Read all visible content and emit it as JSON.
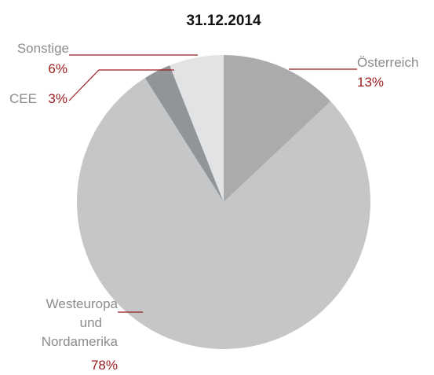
{
  "chart_data": {
    "type": "pie",
    "title": "31.12.2014",
    "categories": [
      "Österreich",
      "Westeuropa und Nordamerika",
      "CEE",
      "Sonstige"
    ],
    "values": [
      13,
      78,
      3,
      6
    ],
    "value_labels": [
      "13%",
      "78%",
      "3%",
      "6%"
    ],
    "colors": [
      "#a9abad",
      "#c4c6c8",
      "#929598",
      "#e2e3e5"
    ]
  }
}
